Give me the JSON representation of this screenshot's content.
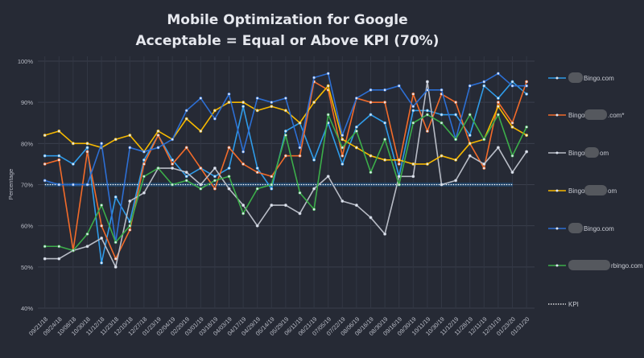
{
  "chart_data": {
    "type": "line",
    "title": [
      "Mobile Optimization for Google",
      "Acceptable = Equal or Above KPI (70%)"
    ],
    "ylabel": "Percentage",
    "xlabel": "",
    "ylim": [
      40,
      100
    ],
    "yticks": [
      "40%",
      "50%",
      "60%",
      "70%",
      "80%",
      "90%",
      "100%"
    ],
    "grid": true,
    "legend_placement": "right",
    "categories": [
      "09/21/18",
      "09/24/18",
      "10/08/18",
      "10/30/18",
      "11/12/18",
      "11/23/18",
      "12/10/18",
      "12/27/18",
      "01/23/19",
      "02/04/19",
      "02/20/19",
      "03/01/19",
      "03/18/19",
      "04/03/19",
      "04/17/19",
      "04/29/19",
      "05/14/19",
      "05/29/19",
      "06/11/19",
      "06/21/19",
      "07/05/19",
      "07/22/19",
      "08/06/19",
      "08/16/19",
      "08/30/19",
      "09/16/19",
      "09/30/19",
      "10/11/19",
      "10/30/19",
      "11/12/19",
      "11/28/19",
      "12/11/19",
      "12/31/19",
      "01/23/20",
      "01/31/20"
    ],
    "series": [
      {
        "name_visible": {
          "prefix": "",
          "suffix": "Bingo.com"
        },
        "color": "#2f9be8",
        "values": [
          77,
          77,
          75,
          79,
          51,
          67,
          61,
          76,
          82,
          76,
          72,
          74,
          72,
          74,
          89,
          74,
          69,
          83,
          85,
          76,
          85,
          75,
          84,
          87,
          85,
          72,
          88,
          88,
          87,
          87,
          82,
          94,
          91,
          95,
          92
        ]
      },
      {
        "name_visible": {
          "prefix": "Bingo",
          "suffix": ".com*"
        },
        "color": "#f26b2a",
        "values": [
          75,
          76,
          54,
          78,
          60,
          52,
          59,
          75,
          82,
          75,
          79,
          74,
          69,
          79,
          75,
          73,
          72,
          77,
          77,
          95,
          93,
          77,
          91,
          90,
          90,
          75,
          92,
          83,
          92,
          90,
          80,
          74,
          90,
          85,
          95
        ]
      },
      {
        "name_visible": {
          "prefix": "Bingo",
          "suffix": "om"
        },
        "color": "#b8bcc6",
        "values": [
          52,
          52,
          54,
          55,
          57,
          50,
          66,
          68,
          74,
          74,
          73,
          70,
          74,
          69,
          65,
          60,
          65,
          65,
          63,
          69,
          72,
          66,
          65,
          62,
          58,
          72,
          72,
          95,
          70,
          71,
          77,
          75,
          79,
          73,
          78
        ]
      },
      {
        "name_visible": {
          "prefix": "Bingo",
          "suffix": "om"
        },
        "color": "#f5b800",
        "values": [
          82,
          83,
          80,
          80,
          79,
          81,
          82,
          78,
          83,
          81,
          86,
          83,
          88,
          90,
          90,
          88,
          89,
          88,
          85,
          90,
          94,
          81,
          79,
          77,
          76,
          76,
          75,
          75,
          77,
          76,
          80,
          81,
          89,
          84,
          82
        ]
      },
      {
        "name_visible": {
          "prefix": "",
          "suffix": "Bingo.com"
        },
        "color": "#2d6fd4",
        "values": [
          71,
          70,
          70,
          70,
          80,
          56,
          79,
          78,
          79,
          81,
          88,
          91,
          86,
          92,
          78,
          91,
          90,
          91,
          79,
          96,
          97,
          82,
          91,
          93,
          93,
          94,
          89,
          93,
          93,
          81,
          94,
          95,
          97,
          94,
          94
        ]
      },
      {
        "name_visible": {
          "prefix": "",
          "suffix": "rbingo.com"
        },
        "color": "#3cae4a",
        "values": [
          55,
          55,
          54,
          58,
          65,
          56,
          60,
          72,
          74,
          70,
          71,
          69,
          71,
          72,
          63,
          69,
          70,
          82,
          68,
          64,
          87,
          79,
          83,
          73,
          81,
          70,
          85,
          87,
          85,
          81,
          87,
          81,
          87,
          77,
          84
        ]
      }
    ],
    "kpi": {
      "name": "KPI",
      "value": 70,
      "color": "#ffffff"
    }
  }
}
